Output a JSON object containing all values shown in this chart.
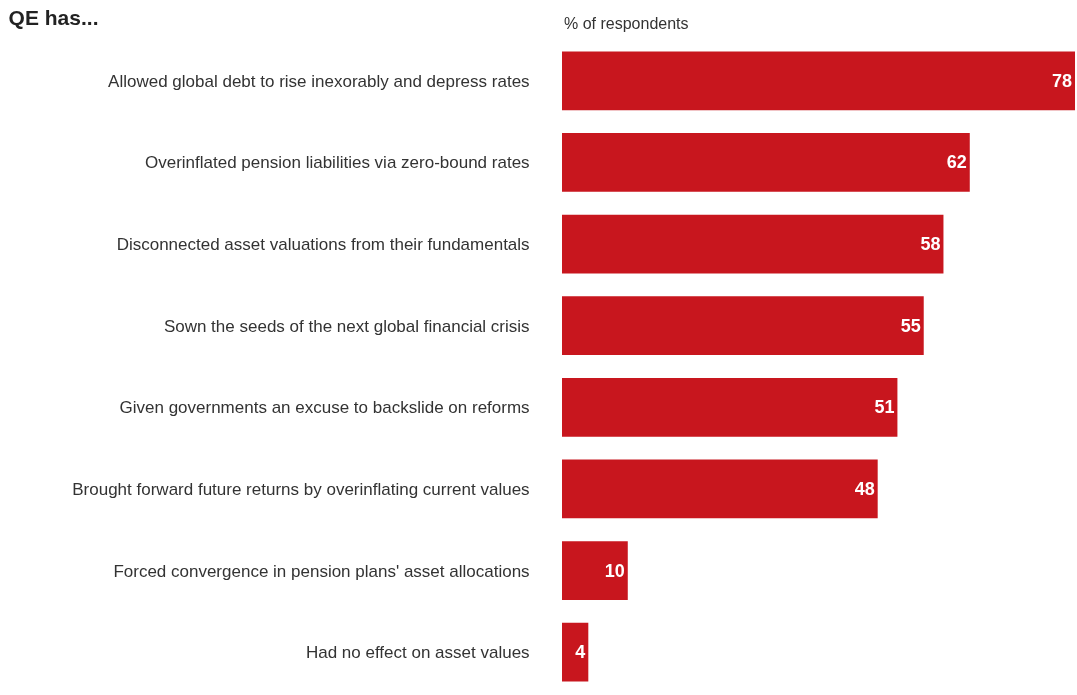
{
  "chart_data": {
    "type": "bar",
    "orientation": "horizontal",
    "title": "QE has...",
    "xlabel": "% of respondents",
    "categories": [
      "Allowed global debt to rise inexorably and depress rates",
      "Overinflated pension liabilities via zero-bound rates",
      "Disconnected asset valuations from their fundamentals",
      "Sown the seeds of the next global financial crisis",
      "Given governments an excuse to backslide on reforms",
      "Brought forward future returns by overinflating current values",
      "Forced convergence in pension plans' asset allocations",
      "Had no effect on asset values"
    ],
    "values": [
      78,
      62,
      58,
      55,
      51,
      48,
      10,
      4
    ],
    "color": "#c8161e",
    "data_labels": true,
    "xlim": [
      0,
      78
    ],
    "tick_labels": "y"
  }
}
